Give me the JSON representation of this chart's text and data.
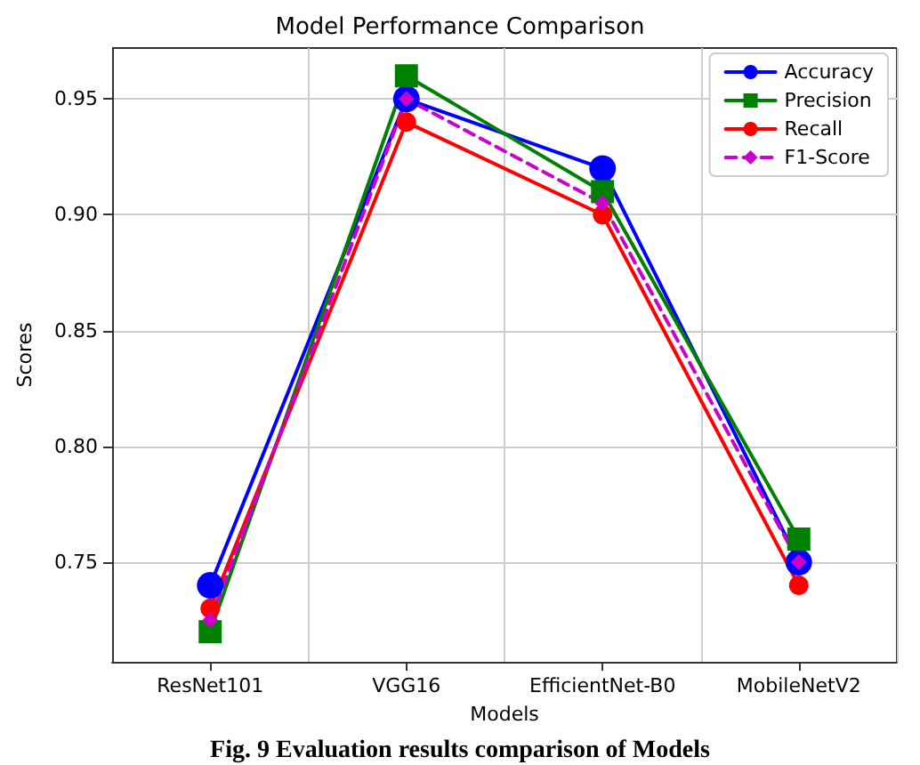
{
  "chart_data": {
    "type": "line",
    "title": "Model Performance Comparison",
    "xlabel": "Models",
    "ylabel": "Scores",
    "categories": [
      "ResNet101",
      "VGG16",
      "EfficientNet-B0",
      "MobileNetV2"
    ],
    "series": [
      {
        "name": "Accuracy",
        "color": "#0000ff",
        "marker": "circle",
        "line_style": "solid",
        "values": [
          0.74,
          0.95,
          0.92,
          0.75
        ]
      },
      {
        "name": "Precision",
        "color": "#008000",
        "marker": "square",
        "line_style": "solid",
        "values": [
          0.72,
          0.96,
          0.91,
          0.76
        ]
      },
      {
        "name": "Recall",
        "color": "#ff0000",
        "marker": "circle",
        "line_style": "solid",
        "values": [
          0.73,
          0.94,
          0.9,
          0.74
        ]
      },
      {
        "name": "F1-Score",
        "color": "#cc00cc",
        "marker": "diamond",
        "line_style": "dashed",
        "values": [
          0.725,
          0.95,
          0.905,
          0.75
        ]
      }
    ],
    "ylim": [
      0.707,
      0.972
    ],
    "yticks": [
      {
        "value": 0.75,
        "label": "0.75"
      },
      {
        "value": 0.8,
        "label": "0.80"
      },
      {
        "value": 0.85,
        "label": "0.85"
      },
      {
        "value": 0.9,
        "label": "0.90"
      },
      {
        "value": 0.95,
        "label": "0.95"
      }
    ],
    "grid": true,
    "legend": "top right",
    "annotations": [
      "Fig. 9 Evaluation results comparison of Models"
    ]
  }
}
